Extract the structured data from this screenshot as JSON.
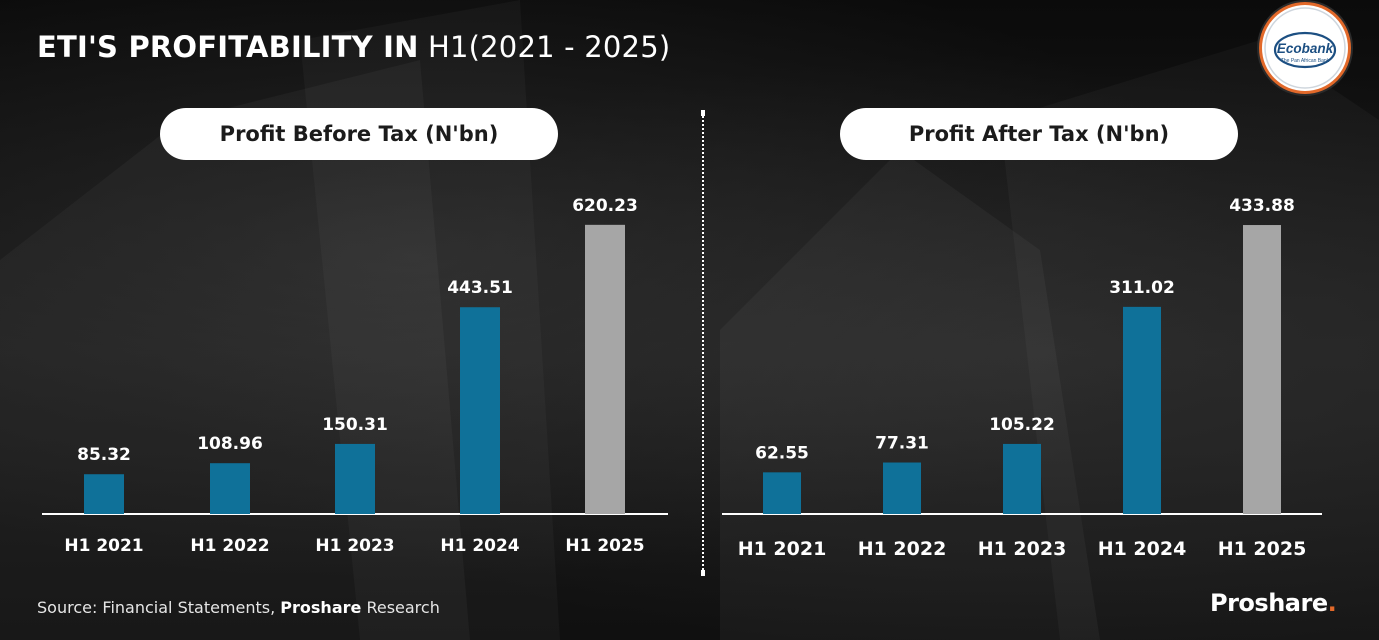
{
  "header": {
    "title_bold": "ETI'S PROFITABILITY IN",
    "title_light": "H1(2021 - 2025)"
  },
  "logo": {
    "name": "Ecobank",
    "tagline": "The Pan African Bank"
  },
  "footer": {
    "source_prefix": "Source: Financial Statements,",
    "source_bold": "Proshare",
    "source_suffix": "Research",
    "brand": "Proshare",
    "brand_dot": "."
  },
  "colors": {
    "bar_blue": "#0f7199",
    "bar_gray": "#a6a6a6",
    "accent_orange": "#e2692a"
  },
  "chart_data": [
    {
      "type": "bar",
      "title": "Profit Before Tax (N'bn)",
      "categories": [
        "H1 2021",
        "H1 2022",
        "H1 2023",
        "H1 2024",
        "H1 2025"
      ],
      "values": [
        85.32,
        108.96,
        150.31,
        443.51,
        620.23
      ],
      "labels": [
        "85.32",
        "108.96",
        "150.31",
        "443.51",
        "620.23"
      ],
      "highlight_last": true,
      "ylim": [
        0,
        740
      ]
    },
    {
      "type": "bar",
      "title": "Profit After Tax (N'bn)",
      "categories": [
        "H1 2021",
        "H1 2022",
        "H1 2023",
        "H1 2024",
        "H1 2025"
      ],
      "values": [
        62.55,
        77.31,
        105.22,
        311.02,
        433.88
      ],
      "labels": [
        "62.55",
        "77.31",
        "105.22",
        "311.02",
        "433.88"
      ],
      "highlight_last": true,
      "ylim": [
        0,
        500
      ]
    }
  ]
}
